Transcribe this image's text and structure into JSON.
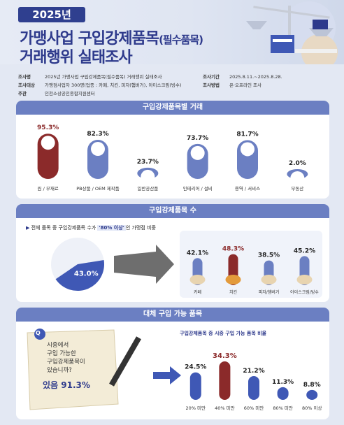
{
  "header": {
    "year": "2025년",
    "title_line1_main": "가맹사업 구입강제품목",
    "title_line1_paren": "(필수품목)",
    "title_line2": "거래행위 실태조사"
  },
  "info": {
    "subject_key": "조사명",
    "subject_val": "2025년 가맹사업 구입강제품목(필수품목) 거래행위 실태조사",
    "target_key": "조사대상",
    "target_val": "가맹점사업자 300명(업종 : 카페, 치킨, 피자(햄버거), 아이스크림(빙수)",
    "host_key": "주관",
    "host_val": "인천소상공인종합지원센터",
    "period_key": "조사기간",
    "period_val": "2025.8.11.~2025.8.28.",
    "method_key": "조사방법",
    "method_val": "온·오프라인 조사"
  },
  "section1": {
    "title": "구입강제품목별 거래",
    "chart_data": {
      "type": "bar",
      "categories": [
        "원 / 부재료",
        "PB상품 / OEM 제작품",
        "일반공산품",
        "인테리어 / 설비",
        "용역 / 서비스",
        "부동산"
      ],
      "values": [
        95.3,
        82.3,
        23.7,
        73.7,
        81.7,
        2.0
      ],
      "value_labels": [
        "95.3%",
        "82.3%",
        "23.7%",
        "73.7%",
        "81.7%",
        "2.0%"
      ],
      "highlight_index": 0,
      "colors": {
        "highlight": "#8b2a2a",
        "normal": "#6b7fc2"
      }
    }
  },
  "section2": {
    "title": "구입강제품목 수",
    "bullet_prefix": "전체 품목 중 구입강제품목 수가 ",
    "bullet_highlight": "'80% 이상'",
    "bullet_suffix": "인 가맹점 비중",
    "pie": {
      "value": 43.0,
      "label": "43.0%"
    },
    "chart_data": {
      "type": "bar",
      "categories": [
        "카페",
        "치킨",
        "피자/햄버거",
        "아이스크림/빙수"
      ],
      "values": [
        42.1,
        48.3,
        38.5,
        45.2
      ],
      "value_labels": [
        "42.1%",
        "48.3%",
        "38.5%",
        "45.2%"
      ],
      "highlight_index": 1
    }
  },
  "section3": {
    "title": "대체 구입 가능 품목",
    "question_badge": "Q",
    "question_lines": [
      "시중에서",
      "구입 가능한",
      "구입강제품목이",
      "있습니까?"
    ],
    "answer_prefix": "있음 ",
    "answer_value": "91.3%",
    "chart_title": "구입강제품목 중 시중 구입 가능 품목 비율",
    "chart_data": {
      "type": "bar",
      "categories": [
        "20% 미만",
        "40% 미만",
        "60% 미만",
        "80% 미만",
        "80% 이상"
      ],
      "values": [
        24.5,
        34.3,
        21.2,
        11.3,
        8.8
      ],
      "value_labels": [
        "24.5%",
        "34.3%",
        "21.2%",
        "11.3%",
        "8.8%"
      ],
      "highlight_index": 1
    }
  }
}
